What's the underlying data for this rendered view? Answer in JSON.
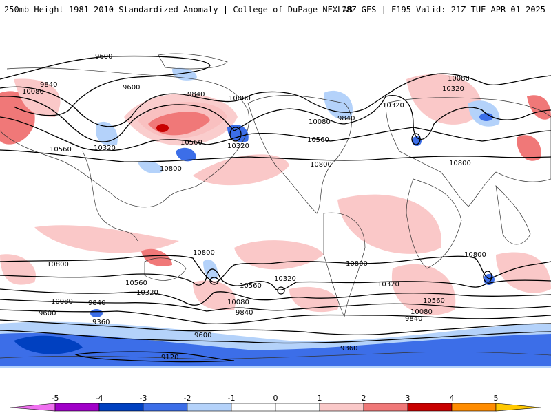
{
  "header": {
    "title": "250mb Height 1981–2010 Standardized Anomaly | College of DuPage NEXLAB",
    "run_info": "18Z GFS | F195 Valid: 21Z TUE APR 01 2025"
  },
  "colors": {
    "ticks": [
      "-5",
      "-4",
      "-3",
      "-2",
      "-1",
      "0",
      "1",
      "2",
      "3",
      "4",
      "5"
    ],
    "bins": [
      "#f070f0",
      "#a000c8",
      "#0040c0",
      "#3c6ee8",
      "#b4d2fa",
      "#ffffff",
      "#ffffff",
      "#fac8c8",
      "#f07878",
      "#c80000",
      "#ff8c00",
      "#ffc800"
    ],
    "contour": "#000000",
    "land_outline": "#333333"
  },
  "contours": {
    "labels": [
      {
        "text": "9600"
      },
      {
        "text": "9600"
      },
      {
        "text": "9840"
      },
      {
        "text": "10080"
      },
      {
        "text": "9840"
      },
      {
        "text": "10080"
      },
      {
        "text": "10320"
      },
      {
        "text": "10560"
      },
      {
        "text": "10320"
      },
      {
        "text": "10080"
      },
      {
        "text": "9840"
      },
      {
        "text": "10560"
      },
      {
        "text": "10800"
      },
      {
        "text": "10080"
      },
      {
        "text": "10320"
      },
      {
        "text": "10560"
      },
      {
        "text": "10800"
      },
      {
        "text": "10800"
      },
      {
        "text": "10800"
      },
      {
        "text": "10560"
      },
      {
        "text": "10320"
      },
      {
        "text": "10080"
      },
      {
        "text": "9840"
      },
      {
        "text": "9600"
      },
      {
        "text": "9360"
      },
      {
        "text": "10800"
      },
      {
        "text": "10560"
      },
      {
        "text": "10320"
      },
      {
        "text": "10080"
      },
      {
        "text": "9840"
      },
      {
        "text": "9600"
      },
      {
        "text": "9360"
      },
      {
        "text": "9120"
      },
      {
        "text": "10800"
      },
      {
        "text": "10320"
      },
      {
        "text": "10560"
      },
      {
        "text": "10080"
      },
      {
        "text": "9840"
      },
      {
        "text": "10800"
      },
      {
        "text": "10320"
      }
    ]
  }
}
